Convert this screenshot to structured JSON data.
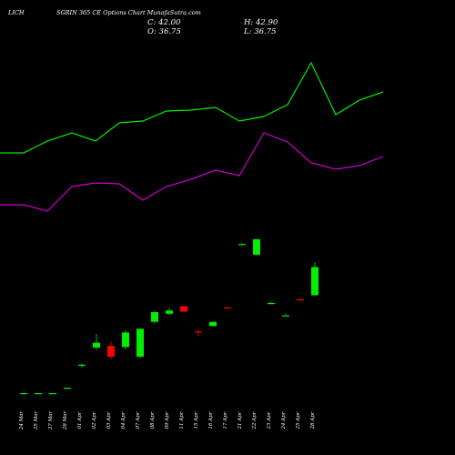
{
  "header": {
    "symbol": "LICH",
    "subtitle": "SGRIN 365 CE Options Chart MunafaSutra.com",
    "close_label": "C: 42.00",
    "high_label": "H: 42.90",
    "open_label": "O: 36.75",
    "low_label": "L: 36.75"
  },
  "colors": {
    "background": "#000000",
    "up": "#00ee00",
    "down": "#ff0000",
    "line_upper": "#00ee00",
    "line_lower": "#cc00cc",
    "text": "#ffffff"
  },
  "chart_data": {
    "type": "candlestick",
    "x": [
      "24 Mar",
      "25 Mar",
      "27 Mar",
      "28 Mar",
      "01 Apr",
      "02 Apr",
      "03 Apr",
      "04 Apr",
      "07 Apr",
      "08 Apr",
      "09 Apr",
      "11 Apr",
      "15 Apr",
      "16 Apr",
      "17 Apr",
      "21 Apr",
      "22 Apr",
      "23 Apr",
      "24 Apr",
      "25 Apr",
      "28 Apr"
    ],
    "candles": [
      {
        "o": 18.5,
        "h": 18.5,
        "l": 18.5,
        "c": 18.5
      },
      {
        "o": 18.5,
        "h": 18.5,
        "l": 18.5,
        "c": 18.5
      },
      {
        "o": 18.5,
        "h": 18.5,
        "l": 18.5,
        "c": 18.5
      },
      {
        "o": 19.5,
        "h": 19.5,
        "l": 19.5,
        "c": 19.5
      },
      {
        "o": 23.6,
        "h": 24.0,
        "l": 23.3,
        "c": 23.8
      },
      {
        "o": 27.0,
        "h": 29.5,
        "l": 26.6,
        "c": 27.9
      },
      {
        "o": 27.3,
        "h": 28.2,
        "l": 24.8,
        "c": 25.3
      },
      {
        "o": 27.1,
        "h": 30.3,
        "l": 26.6,
        "c": 29.8
      },
      {
        "o": 25.3,
        "h": 30.5,
        "l": 25.1,
        "c": 30.5
      },
      {
        "o": 31.8,
        "h": 33.7,
        "l": 31.5,
        "c": 33.6
      },
      {
        "o": 33.3,
        "h": 34.4,
        "l": 33.1,
        "c": 33.9
      },
      {
        "o": 34.7,
        "h": 34.7,
        "l": 33.7,
        "c": 33.7
      },
      {
        "o": 30.0,
        "h": 30.3,
        "l": 29.1,
        "c": 29.9
      },
      {
        "o": 31.0,
        "h": 31.8,
        "l": 31.0,
        "c": 31.8
      },
      {
        "o": 34.5,
        "h": 34.5,
        "l": 34.4,
        "c": 34.4
      },
      {
        "o": 46.3,
        "h": 46.5,
        "l": 46.2,
        "c": 46.3
      },
      {
        "o": 44.3,
        "h": 47.2,
        "l": 44.3,
        "c": 47.2
      },
      {
        "o": 35.3,
        "h": 35.5,
        "l": 35.1,
        "c": 35.3
      },
      {
        "o": 33.0,
        "h": 33.3,
        "l": 33.0,
        "c": 33.0
      },
      {
        "o": 36.0,
        "h": 36.2,
        "l": 35.7,
        "c": 35.9
      },
      {
        "o": 36.75,
        "h": 42.9,
        "l": 36.75,
        "c": 42.0
      }
    ],
    "upper_line": [
      168,
      168,
      155,
      146,
      155,
      135,
      133,
      122,
      121,
      118,
      133,
      128,
      115,
      69,
      126,
      110,
      101
    ],
    "lower_line": [
      225,
      225,
      232,
      205,
      201,
      202,
      220,
      205,
      197,
      187,
      193,
      146,
      156,
      179,
      186,
      182,
      172
    ]
  }
}
